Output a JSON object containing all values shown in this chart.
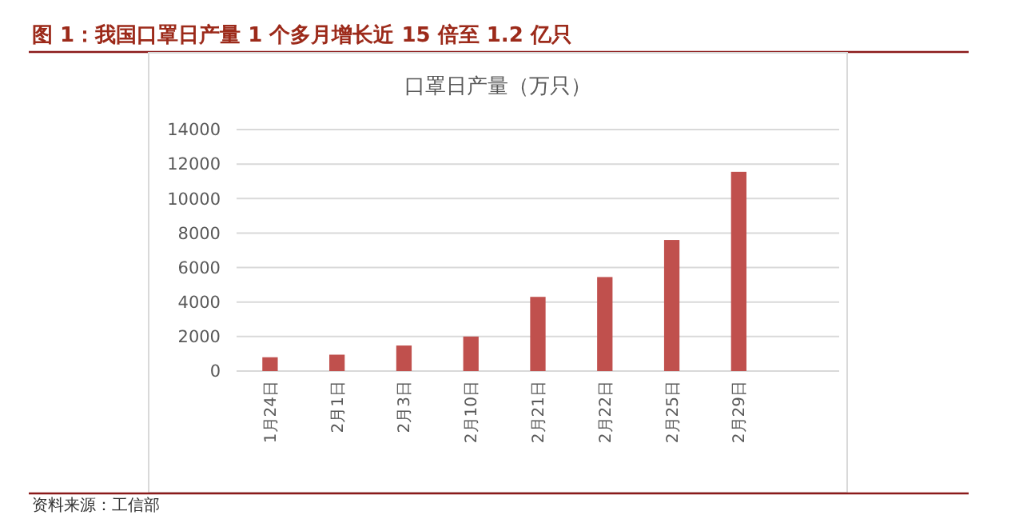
{
  "chart_data": {
    "type": "bar",
    "title": "图 1：我国口罩日产量 1 个多月增长近 15 倍至 1.2 亿只",
    "subtitle": "口罩日产量（万只）",
    "categories": [
      "1月24日",
      "2月1日",
      "2月3日",
      "2月10日",
      "2月21日",
      "2月22日",
      "2月25日",
      "2月29日",
      null
    ],
    "values": [
      800,
      950,
      1480,
      2000,
      4300,
      5450,
      7600,
      11550,
      null
    ],
    "color": "#c0504d",
    "ylim": [
      0,
      14000
    ],
    "yticks": [
      0,
      2000,
      4000,
      6000,
      8000,
      10000,
      12000,
      14000
    ],
    "grid": "y",
    "annotations": [
      "资料来源：工信部"
    ]
  }
}
